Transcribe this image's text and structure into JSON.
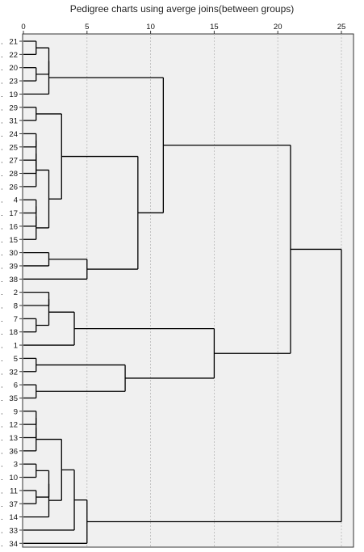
{
  "chart_data": {
    "type": "dendrogram",
    "title": "Pedigree charts using averge joins(between groups)",
    "xlim": [
      0,
      25
    ],
    "xticks": [
      0,
      5,
      10,
      15,
      20,
      25
    ],
    "grid": true,
    "leaves": [
      "21",
      "22",
      "20",
      "23",
      "19",
      "29",
      "31",
      "24",
      "25",
      "27",
      "28",
      "26",
      "4",
      "17",
      "16",
      "15",
      "30",
      "39",
      "38",
      "2",
      "8",
      "7",
      "18",
      "1",
      "5",
      "32",
      "6",
      "35",
      "9",
      "12",
      "13",
      "36",
      "3",
      "10",
      "11",
      "37",
      "14",
      "33",
      "34"
    ],
    "merges": [
      {
        "id": "A1",
        "children": [
          "21",
          "22"
        ],
        "height": 1
      },
      {
        "id": "A2",
        "children": [
          "20",
          "23"
        ],
        "height": 1
      },
      {
        "id": "A3",
        "children": [
          "A1",
          "A2"
        ],
        "height": 2
      },
      {
        "id": "A4",
        "children": [
          "A3",
          "19"
        ],
        "height": 2
      },
      {
        "id": "B1",
        "children": [
          "29",
          "31"
        ],
        "height": 1
      },
      {
        "id": "C1",
        "children": [
          "24",
          "25"
        ],
        "height": 1
      },
      {
        "id": "C2",
        "children": [
          "27",
          "28"
        ],
        "height": 1
      },
      {
        "id": "C3",
        "children": [
          "C1",
          "C2"
        ],
        "height": 1
      },
      {
        "id": "C4",
        "children": [
          "C3",
          "26"
        ],
        "height": 1
      },
      {
        "id": "D1",
        "children": [
          "4",
          "17"
        ],
        "height": 1
      },
      {
        "id": "D2",
        "children": [
          "D1",
          "16"
        ],
        "height": 1
      },
      {
        "id": "D3",
        "children": [
          "D2",
          "15"
        ],
        "height": 1
      },
      {
        "id": "C5",
        "children": [
          "C4",
          "D3"
        ],
        "height": 2
      },
      {
        "id": "BC",
        "children": [
          "B1",
          "C5"
        ],
        "height": 3
      },
      {
        "id": "E1",
        "children": [
          "30",
          "39"
        ],
        "height": 2
      },
      {
        "id": "E2",
        "children": [
          "E1",
          "38"
        ],
        "height": 5
      },
      {
        "id": "F1",
        "children": [
          "BC",
          "E2"
        ],
        "height": 9
      },
      {
        "id": "G1",
        "children": [
          "A4",
          "F1"
        ],
        "height": 11
      },
      {
        "id": "H1",
        "children": [
          "2",
          "8"
        ],
        "height": 2
      },
      {
        "id": "H2",
        "children": [
          "7",
          "18"
        ],
        "height": 1
      },
      {
        "id": "H3",
        "children": [
          "H1",
          "H2"
        ],
        "height": 2
      },
      {
        "id": "H4",
        "children": [
          "H3",
          "1"
        ],
        "height": 4
      },
      {
        "id": "I1",
        "children": [
          "5",
          "32"
        ],
        "height": 1
      },
      {
        "id": "I2",
        "children": [
          "6",
          "35"
        ],
        "height": 1
      },
      {
        "id": "I3",
        "children": [
          "I1",
          "I2"
        ],
        "height": 8
      },
      {
        "id": "J1",
        "children": [
          "H4",
          "I3"
        ],
        "height": 15
      },
      {
        "id": "K1",
        "children": [
          "G1",
          "J1"
        ],
        "height": 21
      },
      {
        "id": "L1",
        "children": [
          "9",
          "12"
        ],
        "height": 1
      },
      {
        "id": "L2",
        "children": [
          "L1",
          "13"
        ],
        "height": 1
      },
      {
        "id": "L3",
        "children": [
          "L2",
          "36"
        ],
        "height": 1
      },
      {
        "id": "M1",
        "children": [
          "3",
          "10"
        ],
        "height": 1
      },
      {
        "id": "M2",
        "children": [
          "11",
          "37"
        ],
        "height": 1
      },
      {
        "id": "M3",
        "children": [
          "M1",
          "M2"
        ],
        "height": 2
      },
      {
        "id": "M4",
        "children": [
          "M3",
          "14"
        ],
        "height": 2
      },
      {
        "id": "N1",
        "children": [
          "L3",
          "M4"
        ],
        "height": 3
      },
      {
        "id": "N2",
        "children": [
          "N1",
          "33"
        ],
        "height": 4
      },
      {
        "id": "N3",
        "children": [
          "N2",
          "34"
        ],
        "height": 5
      },
      {
        "id": "ROOT",
        "children": [
          "K1",
          "N3"
        ],
        "height": 25
      }
    ]
  }
}
